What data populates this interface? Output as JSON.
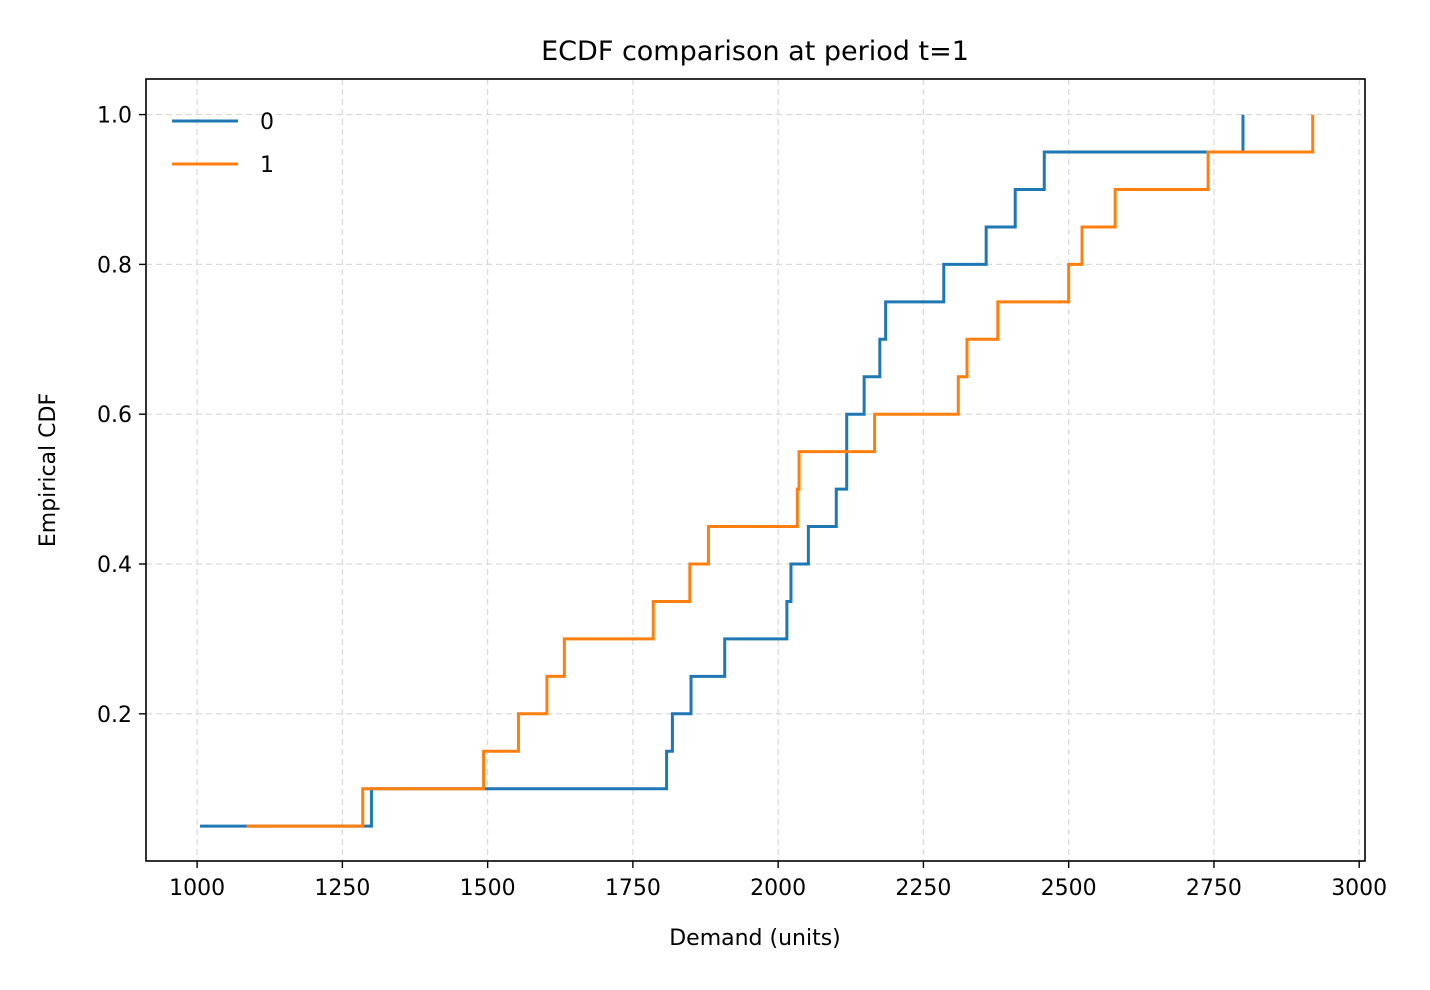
{
  "chart_data": {
    "type": "line",
    "subtype": "ecdf-step",
    "title": "ECDF comparison at period t=1",
    "xlabel": "Demand (units)",
    "ylabel": "Empirical CDF",
    "xlim": [
      912,
      3010
    ],
    "ylim": [
      0.0035,
      1.0475
    ],
    "xticks": [
      1000,
      1250,
      1500,
      1750,
      2000,
      2250,
      2500,
      2750,
      3000
    ],
    "yticks": [
      0.2,
      0.4,
      0.6,
      0.8,
      1.0
    ],
    "xtick_labels": [
      "1000",
      "1250",
      "1500",
      "1750",
      "2000",
      "2250",
      "2500",
      "2750",
      "3000"
    ],
    "ytick_labels": [
      "0.2",
      "0.4",
      "0.6",
      "0.8",
      "1.0"
    ],
    "grid": true,
    "legend_position": "upper-left",
    "series": [
      {
        "name": "0",
        "color": "#1f77b4",
        "x": [
          1005,
          1300,
          1808,
          1818,
          1850,
          1908,
          2015,
          2022,
          2052,
          2100,
          2118,
          2148,
          2175,
          2185,
          2285,
          2358,
          2408,
          2458,
          2800
        ],
        "y": [
          0.05,
          0.1,
          0.15,
          0.2,
          0.25,
          0.3,
          0.35,
          0.4,
          0.45,
          0.5,
          0.6,
          0.65,
          0.7,
          0.75,
          0.8,
          0.85,
          0.9,
          0.95,
          1.0
        ]
      },
      {
        "name": "1",
        "color": "#ff7f0e",
        "x": [
          1085,
          1285,
          1493,
          1553,
          1602,
          1632,
          1785,
          1848,
          1880,
          2033,
          2036,
          2166,
          2310,
          2325,
          2378,
          2500,
          2523,
          2580,
          2740,
          2920
        ],
        "y": [
          0.05,
          0.1,
          0.15,
          0.2,
          0.25,
          0.3,
          0.35,
          0.4,
          0.45,
          0.5,
          0.55,
          0.6,
          0.65,
          0.7,
          0.75,
          0.8,
          0.85,
          0.9,
          0.95,
          1.0
        ]
      }
    ]
  }
}
